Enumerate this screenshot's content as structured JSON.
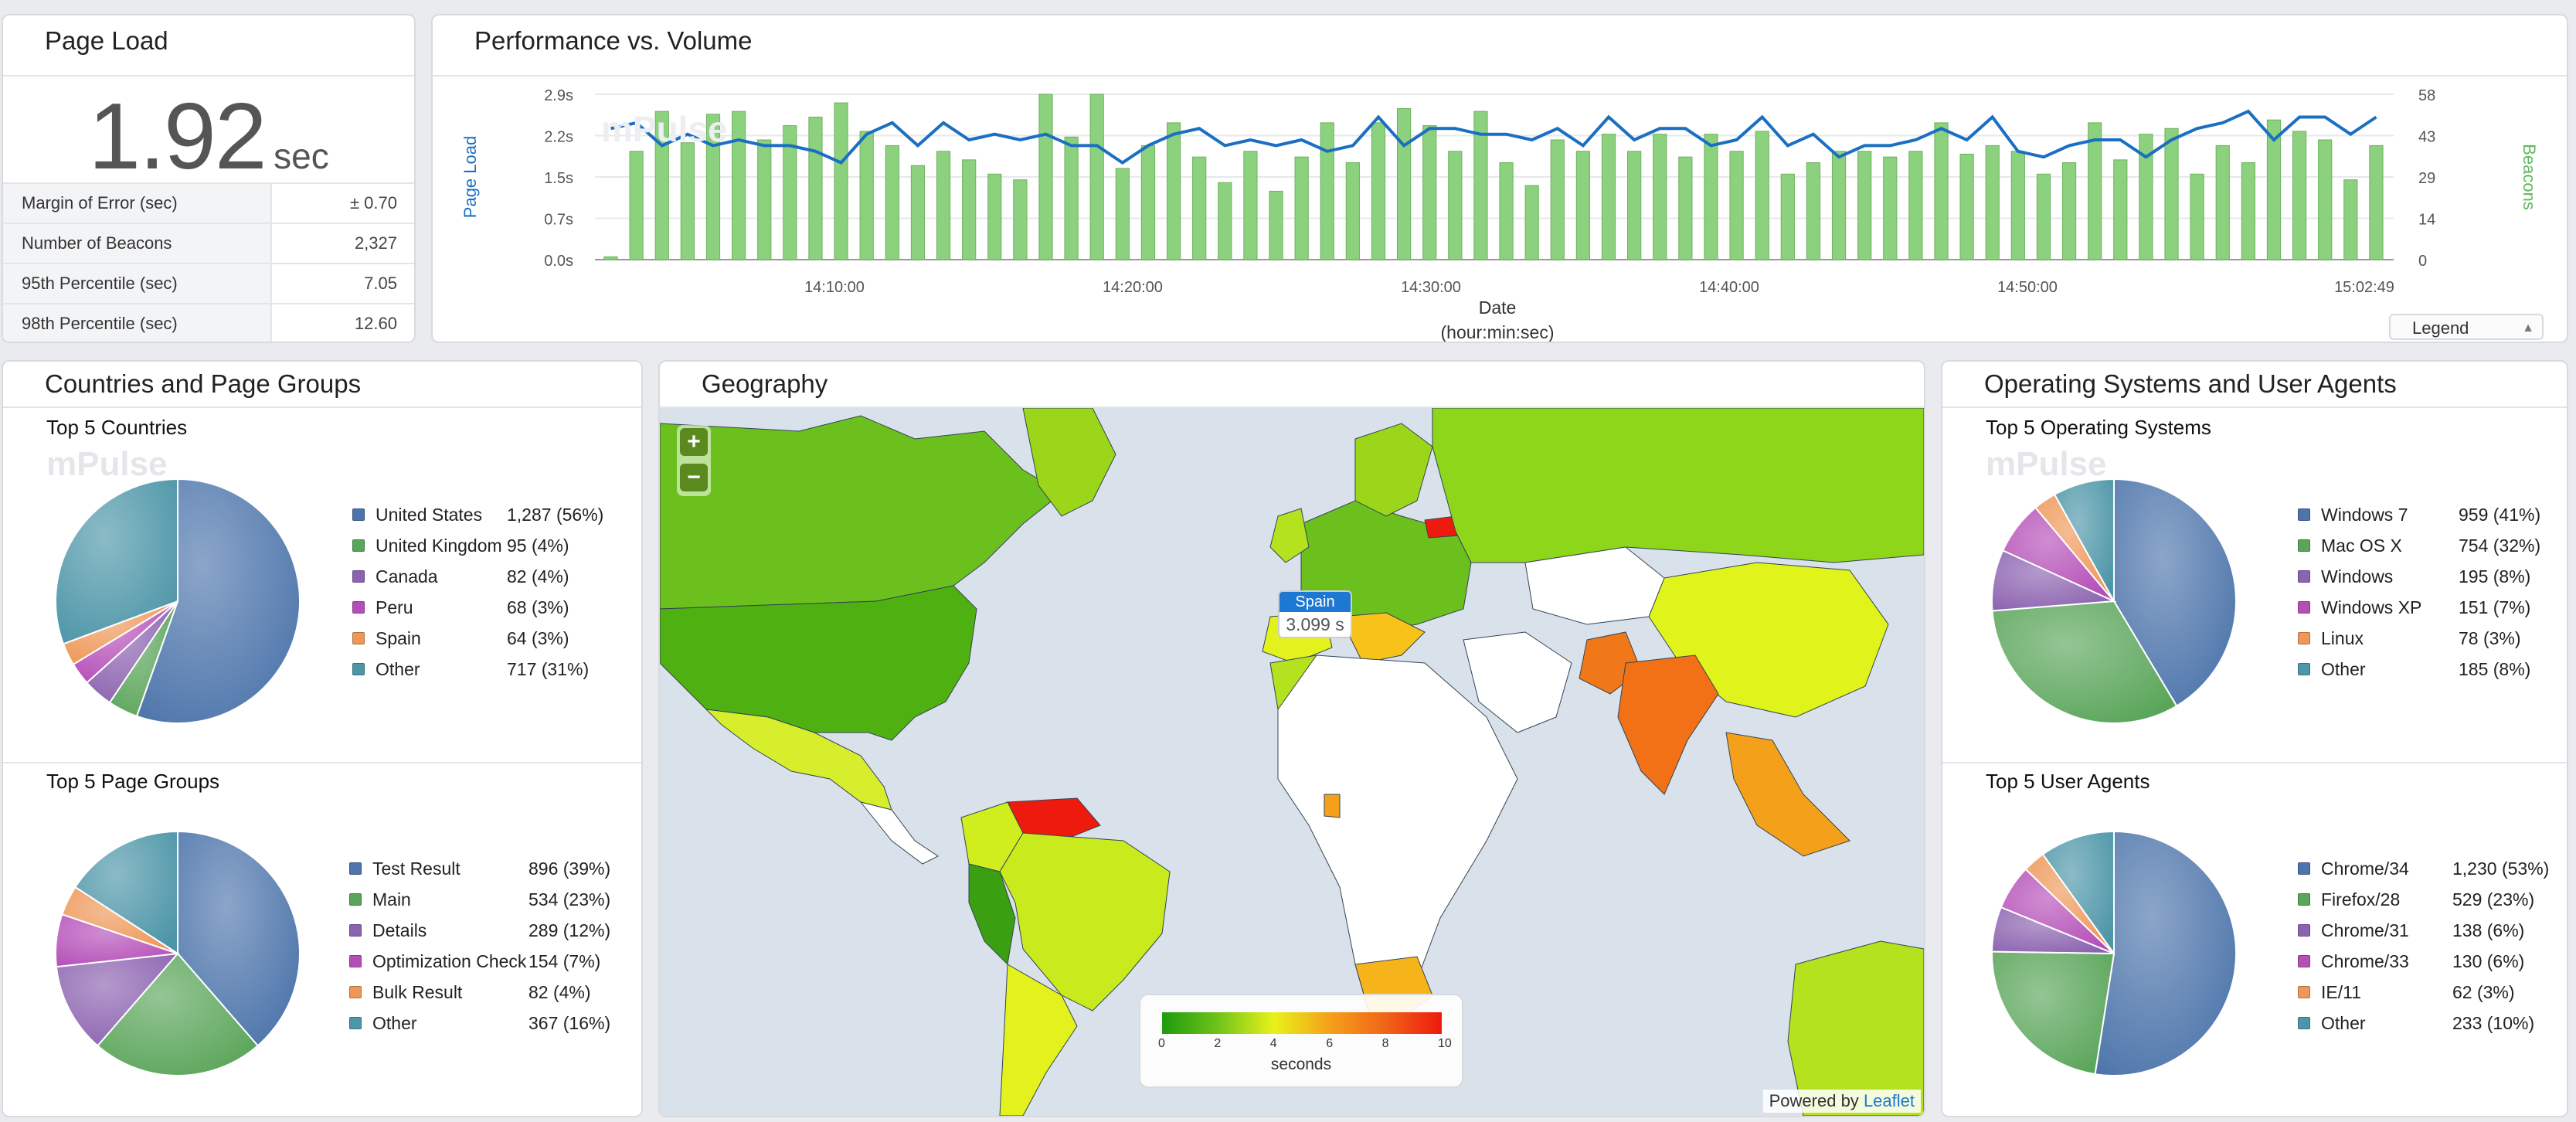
{
  "page_load": {
    "title": "Page Load",
    "value": "1.92",
    "unit": "sec",
    "stats": [
      {
        "label": "Margin of Error (sec)",
        "value": "± 0.70"
      },
      {
        "label": "Number of Beacons",
        "value": "2,327"
      },
      {
        "label": "95th Percentile (sec)",
        "value": "7.05"
      },
      {
        "label": "98th Percentile (sec)",
        "value": "12.60"
      }
    ]
  },
  "performance": {
    "title": "Performance vs. Volume",
    "legend_button": "Legend",
    "watermark": "mPulse",
    "colors": {
      "line": "#1b6fc2",
      "bars": "#8cd17d"
    },
    "chart_data": {
      "type": "bar+line",
      "xlabel": "Date",
      "xlabel2": "(hour:min:sec)",
      "ylabel_left": "Page Load",
      "ylabel_right": "Beacons",
      "y_left_ticks": [
        "0.0s",
        "0.7s",
        "1.5s",
        "2.2s",
        "2.9s"
      ],
      "y_right_ticks": [
        "0",
        "14",
        "29",
        "43",
        "58"
      ],
      "x_ticks": [
        "14:10:00",
        "14:20:00",
        "14:30:00",
        "14:40:00",
        "14:50:00",
        "15:02:49"
      ],
      "ylim_left": [
        0,
        2.9
      ],
      "ylim_right": [
        0,
        58
      ],
      "series": [
        {
          "name": "Beacons",
          "type": "bar",
          "values": [
            1,
            38,
            52,
            41,
            51,
            52,
            42,
            47,
            50,
            55,
            45,
            40,
            33,
            38,
            35,
            30,
            28,
            58,
            43,
            58,
            32,
            40,
            48,
            36,
            27,
            38,
            24,
            36,
            48,
            34,
            48,
            53,
            47,
            38,
            52,
            34,
            26,
            42,
            38,
            44,
            38,
            44,
            36,
            44,
            38,
            45,
            30,
            34,
            38,
            38,
            36,
            38,
            48,
            37,
            40,
            38,
            30,
            34,
            48,
            35,
            44,
            46,
            30,
            40,
            34,
            49,
            45,
            42,
            28,
            40
          ]
        },
        {
          "name": "Page Load",
          "type": "line",
          "values": [
            2.3,
            2.4,
            2.0,
            2.2,
            2.0,
            2.1,
            2.0,
            2.0,
            1.9,
            1.7,
            2.2,
            2.4,
            2.0,
            2.4,
            2.1,
            2.2,
            2.1,
            2.2,
            2.0,
            2.0,
            1.7,
            2.0,
            2.2,
            2.3,
            2.0,
            2.1,
            2.0,
            2.1,
            1.9,
            2.0,
            2.5,
            2.0,
            2.3,
            2.3,
            2.2,
            2.2,
            2.1,
            2.3,
            2.0,
            2.5,
            2.1,
            2.3,
            2.3,
            2.0,
            2.1,
            2.5,
            2.0,
            2.2,
            1.8,
            2.0,
            2.0,
            2.1,
            2.3,
            2.1,
            2.5,
            1.9,
            1.8,
            2.0,
            2.1,
            2.1,
            1.8,
            2.1,
            2.3,
            2.4,
            2.6,
            2.1,
            2.5,
            2.5,
            2.2,
            2.5
          ]
        }
      ]
    }
  },
  "countries": {
    "title": "Countries and Page Groups",
    "top_countries": {
      "title": "Top 5 Countries",
      "items": [
        {
          "name": "United States",
          "value": "1,287 (56%)",
          "pct": 56,
          "color": "#4d75ab"
        },
        {
          "name": "United Kingdom",
          "value": "95 (4%)",
          "pct": 4,
          "color": "#5aa55a"
        },
        {
          "name": "Canada",
          "value": "82 (4%)",
          "pct": 4,
          "color": "#8c63b0"
        },
        {
          "name": "Peru",
          "value": "68 (3%)",
          "pct": 3,
          "color": "#b54fb8"
        },
        {
          "name": "Spain",
          "value": "64 (3%)",
          "pct": 3,
          "color": "#ee9758"
        },
        {
          "name": "Other",
          "value": "717 (31%)",
          "pct": 31,
          "color": "#4d96a8"
        }
      ]
    },
    "top_page_groups": {
      "title": "Top 5 Page Groups",
      "items": [
        {
          "name": "Test Result",
          "value": "896 (39%)",
          "pct": 39,
          "color": "#4d75ab"
        },
        {
          "name": "Main",
          "value": "534 (23%)",
          "pct": 23,
          "color": "#5aa55a"
        },
        {
          "name": "Details",
          "value": "289 (12%)",
          "pct": 12,
          "color": "#8c63b0"
        },
        {
          "name": "Optimization Check",
          "value": "154 (7%)",
          "pct": 7,
          "color": "#b54fb8"
        },
        {
          "name": "Bulk Result",
          "value": "82 (4%)",
          "pct": 4,
          "color": "#ee9758"
        },
        {
          "name": "Other",
          "value": "367 (16%)",
          "pct": 16,
          "color": "#4d96a8"
        }
      ]
    }
  },
  "geography": {
    "title": "Geography",
    "zoom_in": "+",
    "zoom_out": "−",
    "tooltip_country": "Spain",
    "tooltip_value": "3.099 s",
    "scale_ticks": [
      "0",
      "2",
      "4",
      "6",
      "8",
      "10"
    ],
    "scale_label": "seconds",
    "attribution_prefix": "Powered by",
    "attribution_link": "Leaflet",
    "colors": {
      "ocean": "#d9e1ea",
      "land_none": "#ffffff",
      "green": "#5bb714",
      "yellow": "#e6f214",
      "orange": "#f39a1a",
      "red": "#ee2c12"
    }
  },
  "os": {
    "title": "Operating Systems and User Agents",
    "top_os": {
      "title": "Top 5 Operating Systems",
      "items": [
        {
          "name": "Windows 7",
          "value": "959 (41%)",
          "pct": 41,
          "color": "#4d75ab"
        },
        {
          "name": "Mac OS X",
          "value": "754 (32%)",
          "pct": 32,
          "color": "#5aa55a"
        },
        {
          "name": "Windows",
          "value": "195 (8%)",
          "pct": 8,
          "color": "#8c63b0"
        },
        {
          "name": "Windows XP",
          "value": "151 (7%)",
          "pct": 7,
          "color": "#b54fb8"
        },
        {
          "name": "Linux",
          "value": "78 (3%)",
          "pct": 3,
          "color": "#ee9758"
        },
        {
          "name": "Other",
          "value": "185 (8%)",
          "pct": 8,
          "color": "#4d96a8"
        }
      ]
    },
    "top_agents": {
      "title": "Top 5 User Agents",
      "items": [
        {
          "name": "Chrome/34",
          "value": "1,230 (53%)",
          "pct": 53,
          "color": "#4d75ab"
        },
        {
          "name": "Firefox/28",
          "value": "529 (23%)",
          "pct": 23,
          "color": "#5aa55a"
        },
        {
          "name": "Chrome/31",
          "value": "138 (6%)",
          "pct": 6,
          "color": "#8c63b0"
        },
        {
          "name": "Chrome/33",
          "value": "130 (6%)",
          "pct": 6,
          "color": "#b54fb8"
        },
        {
          "name": "IE/11",
          "value": "62 (3%)",
          "pct": 3,
          "color": "#ee9758"
        },
        {
          "name": "Other",
          "value": "233 (10%)",
          "pct": 10,
          "color": "#4d96a8"
        }
      ]
    }
  }
}
